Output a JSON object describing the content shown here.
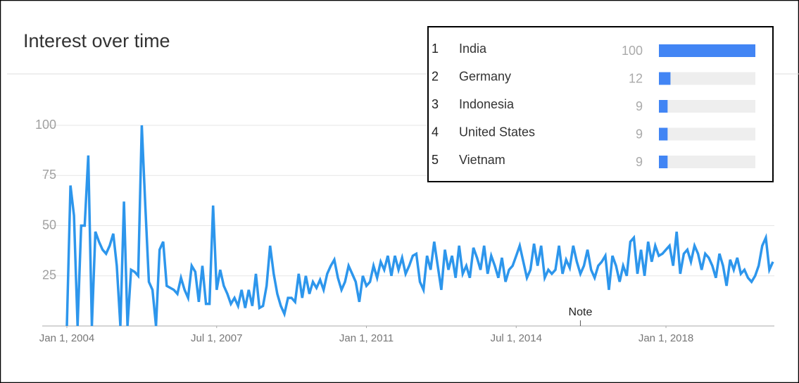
{
  "chart_data": {
    "type": "line",
    "title": "Interest over time",
    "color": "#2d96ec",
    "x": [
      "2004-01-01",
      "2004-02-01",
      "2004-03-01",
      "2004-04-01",
      "2004-05-01",
      "2004-06-01",
      "2004-07-01",
      "2004-08-01",
      "2004-09-01",
      "2004-10-01",
      "2004-11-01",
      "2004-12-01",
      "2005-01-01",
      "2005-02-01",
      "2005-03-01",
      "2005-04-01",
      "2005-05-01",
      "2005-06-01",
      "2005-07-01",
      "2005-08-01",
      "2005-09-01",
      "2005-10-01",
      "2005-11-01",
      "2005-12-01",
      "2006-01-01",
      "2006-02-01",
      "2006-03-01",
      "2006-04-01",
      "2006-05-01",
      "2006-06-01",
      "2006-07-01",
      "2006-08-01",
      "2006-09-01",
      "2006-10-01",
      "2006-11-01",
      "2006-12-01",
      "2007-01-01",
      "2007-02-01",
      "2007-03-01",
      "2007-04-01",
      "2007-05-01",
      "2007-06-01",
      "2007-07-01",
      "2007-08-01",
      "2007-09-01",
      "2007-10-01",
      "2007-11-01",
      "2007-12-01",
      "2008-01-01",
      "2008-02-01",
      "2008-03-01",
      "2008-04-01",
      "2008-05-01",
      "2008-06-01",
      "2008-07-01",
      "2008-08-01",
      "2008-09-01",
      "2008-10-01",
      "2008-11-01",
      "2008-12-01",
      "2009-01-01",
      "2009-02-01",
      "2009-03-01",
      "2009-04-01",
      "2009-05-01",
      "2009-06-01",
      "2009-07-01",
      "2009-08-01",
      "2009-09-01",
      "2009-10-01",
      "2009-11-01",
      "2009-12-01",
      "2010-01-01",
      "2010-02-01",
      "2010-03-01",
      "2010-04-01",
      "2010-05-01",
      "2010-06-01",
      "2010-07-01",
      "2010-08-01",
      "2010-09-01",
      "2010-10-01",
      "2010-11-01",
      "2010-12-01",
      "2011-01-01",
      "2011-02-01",
      "2011-03-01",
      "2011-04-01",
      "2011-05-01",
      "2011-06-01",
      "2011-07-01",
      "2011-08-01",
      "2011-09-01",
      "2011-10-01",
      "2011-11-01",
      "2011-12-01",
      "2012-01-01",
      "2012-02-01",
      "2012-03-01",
      "2012-04-01",
      "2012-05-01",
      "2012-06-01",
      "2012-07-01",
      "2012-08-01",
      "2012-09-01",
      "2012-10-01",
      "2012-11-01",
      "2012-12-01",
      "2013-01-01",
      "2013-02-01",
      "2013-03-01",
      "2013-04-01",
      "2013-05-01",
      "2013-06-01",
      "2013-07-01",
      "2013-08-01",
      "2013-09-01",
      "2013-10-01",
      "2013-11-01",
      "2013-12-01",
      "2014-01-01",
      "2014-02-01",
      "2014-03-01",
      "2014-04-01",
      "2014-05-01",
      "2014-06-01",
      "2014-07-01",
      "2014-08-01",
      "2014-09-01",
      "2014-10-01",
      "2014-11-01",
      "2014-12-01",
      "2015-01-01",
      "2015-02-01",
      "2015-03-01",
      "2015-04-01",
      "2015-05-01",
      "2015-06-01",
      "2015-07-01",
      "2015-08-01",
      "2015-09-01",
      "2015-10-01",
      "2015-11-01",
      "2015-12-01",
      "2016-01-01",
      "2016-02-01",
      "2016-03-01",
      "2016-04-01",
      "2016-05-01",
      "2016-06-01",
      "2016-07-01",
      "2016-08-01",
      "2016-09-01",
      "2016-10-01",
      "2016-11-01",
      "2016-12-01",
      "2017-01-01",
      "2017-02-01",
      "2017-03-01",
      "2017-04-01",
      "2017-05-01",
      "2017-06-01",
      "2017-07-01",
      "2017-08-01",
      "2017-09-01",
      "2017-10-01",
      "2017-11-01",
      "2017-12-01",
      "2018-01-01",
      "2018-02-01",
      "2018-03-01",
      "2018-04-01",
      "2018-05-01",
      "2018-06-01",
      "2018-07-01",
      "2018-08-01",
      "2018-09-01",
      "2018-10-01",
      "2018-11-01",
      "2018-12-01",
      "2019-01-01",
      "2019-02-01",
      "2019-03-01",
      "2019-04-01",
      "2019-05-01",
      "2019-06-01",
      "2019-07-01",
      "2019-08-01",
      "2019-09-01",
      "2019-10-01",
      "2019-11-01",
      "2019-12-01",
      "2020-01-01",
      "2020-02-01",
      "2020-03-01",
      "2020-04-01",
      "2020-05-01",
      "2020-06-01",
      "2020-07-01"
    ],
    "values": [
      0,
      70,
      55,
      0,
      50,
      50,
      85,
      0,
      47,
      42,
      38,
      36,
      40,
      46,
      30,
      0,
      62,
      0,
      28,
      27,
      25,
      100,
      60,
      22,
      18,
      0,
      38,
      42,
      20,
      19,
      18,
      16,
      24,
      18,
      14,
      30,
      27,
      12,
      30,
      11,
      11,
      60,
      18,
      28,
      20,
      16,
      11,
      14,
      10,
      18,
      9,
      18,
      10,
      26,
      9,
      10,
      20,
      40,
      26,
      16,
      10,
      6,
      14,
      14,
      12,
      26,
      14,
      25,
      16,
      22,
      19,
      23,
      18,
      26,
      30,
      33,
      24,
      18,
      22,
      30,
      26,
      22,
      12,
      25,
      20,
      22,
      30,
      24,
      32,
      28,
      35,
      25,
      35,
      28,
      34,
      26,
      30,
      35,
      36,
      22,
      18,
      35,
      28,
      42,
      30,
      18,
      38,
      28,
      35,
      24,
      40,
      26,
      30,
      24,
      39,
      34,
      28,
      40,
      26,
      35,
      30,
      24,
      34,
      22,
      28,
      30,
      35,
      40,
      32,
      24,
      28,
      41,
      30,
      40,
      24,
      28,
      26,
      28,
      40,
      26,
      33,
      29,
      40,
      32,
      26,
      30,
      38,
      28,
      24,
      30,
      32,
      35,
      18,
      35,
      30,
      22,
      30,
      25,
      42,
      44,
      26,
      38,
      25,
      42,
      32,
      40,
      35,
      36,
      38,
      40,
      30,
      47,
      26,
      36,
      38,
      32,
      40,
      36,
      28,
      36,
      34,
      30,
      24,
      36,
      30,
      20,
      33,
      28,
      34,
      26,
      28,
      24,
      22,
      25,
      30,
      40,
      44,
      28,
      32
    ],
    "xlim": [
      "2004-01-01",
      "2020-07-01"
    ],
    "xticks": [
      {
        "value": "2004-01-01",
        "label": "Jan 1, 2004"
      },
      {
        "value": "2007-07-01",
        "label": "Jul 1, 2007"
      },
      {
        "value": "2011-01-01",
        "label": "Jan 1, 2011"
      },
      {
        "value": "2014-07-01",
        "label": "Jul 1, 2014"
      },
      {
        "value": "2018-01-01",
        "label": "Jan 1, 2018"
      }
    ],
    "ylim": [
      0,
      100
    ],
    "yticks": [
      25,
      50,
      75,
      100
    ],
    "grid": true,
    "annotations": [
      {
        "text": "Note",
        "x": "2016-01-01"
      }
    ],
    "ranking": {
      "color": "#4285f4",
      "max": 100,
      "items": [
        {
          "rank": 1,
          "name": "India",
          "value": 100
        },
        {
          "rank": 2,
          "name": "Germany",
          "value": 12
        },
        {
          "rank": 3,
          "name": "Indonesia",
          "value": 9
        },
        {
          "rank": 4,
          "name": "United States",
          "value": 9
        },
        {
          "rank": 5,
          "name": "Vietnam",
          "value": 9
        }
      ]
    }
  }
}
